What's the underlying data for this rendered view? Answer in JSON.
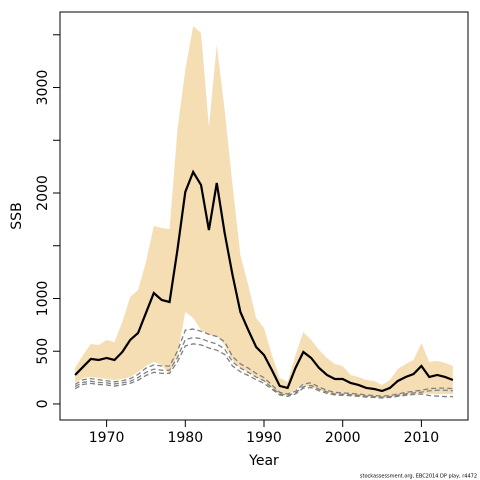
{
  "chart_data": {
    "type": "line",
    "xlabel": "Year",
    "ylabel": "SSB",
    "footer": "stockassessment.org, EBC2014 DP play, r4472",
    "x": [
      1966,
      1967,
      1968,
      1969,
      1970,
      1971,
      1972,
      1973,
      1974,
      1975,
      1976,
      1977,
      1978,
      1979,
      1980,
      1981,
      1982,
      1983,
      1984,
      1985,
      1986,
      1987,
      1988,
      1989,
      1990,
      1991,
      1992,
      1993,
      1994,
      1995,
      1996,
      1997,
      1998,
      1999,
      2000,
      2001,
      2002,
      2003,
      2004,
      2005,
      2006,
      2007,
      2008,
      2009,
      2010,
      2011,
      2012,
      2013,
      2014
    ],
    "xlim": [
      1964.08,
      2015.92
    ],
    "xticks": [
      1970,
      1980,
      1990,
      2000,
      2010
    ],
    "ylim": [
      -152,
      3716
    ],
    "yticks": [
      0,
      500,
      1000,
      2000,
      3000
    ],
    "minor_yticks": [
      1500,
      2500,
      3500
    ],
    "band": {
      "color": "#f5deb3",
      "upper": [
        341,
        464,
        569,
        559,
        607,
        588,
        777,
        1014,
        1081,
        1346,
        1687,
        1668,
        1659,
        2597,
        3166,
        3583,
        3517,
        2626,
        3403,
        2787,
        2076,
        1412,
        1128,
        815,
        720,
        464,
        246,
        209,
        464,
        682,
        607,
        512,
        436,
        379,
        360,
        275,
        256,
        227,
        218,
        180,
        227,
        332,
        379,
        417,
        578,
        398,
        408,
        389,
        360
      ],
      "lower": [
        199,
        246,
        256,
        246,
        237,
        227,
        237,
        256,
        303,
        360,
        398,
        370,
        284,
        464,
        872,
        815,
        701,
        654,
        645,
        559,
        417,
        341,
        303,
        256,
        218,
        152,
        85,
        85,
        133,
        180,
        161,
        133,
        104,
        95,
        95,
        85,
        76,
        66,
        66,
        57,
        66,
        76,
        85,
        95,
        104,
        95,
        95,
        95,
        95
      ]
    },
    "series": [
      {
        "color": "#000000",
        "dash": false,
        "values": [
          275,
          351,
          427,
          417,
          436,
          417,
          493,
          607,
          673,
          863,
          1052,
          986,
          967,
          1460,
          2010,
          2199,
          2076,
          1649,
          2095,
          1621,
          1223,
          872,
          701,
          540,
          464,
          322,
          171,
          152,
          341,
          493,
          436,
          341,
          275,
          237,
          237,
          199,
          180,
          152,
          142,
          123,
          152,
          218,
          256,
          284,
          360,
          256,
          275,
          256,
          227
        ]
      },
      {
        "color": "#808080",
        "dash": true,
        "values": [
          185,
          230,
          240,
          230,
          220,
          210,
          220,
          240,
          280,
          340,
          370,
          360,
          360,
          500,
          700,
          710,
          690,
          660,
          640,
          590,
          450,
          380,
          340,
          290,
          250,
          180,
          110,
          95,
          120,
          190,
          200,
          160,
          130,
          110,
          105,
          100,
          95,
          85,
          80,
          75,
          80,
          95,
          110,
          120,
          130,
          145,
          150,
          150,
          145
        ]
      },
      {
        "color": "#808080",
        "dash": true,
        "values": [
          165,
          205,
          215,
          205,
          200,
          190,
          200,
          215,
          250,
          300,
          330,
          320,
          320,
          440,
          610,
          630,
          620,
          590,
          570,
          520,
          400,
          340,
          300,
          255,
          220,
          155,
          95,
          82,
          105,
          165,
          175,
          140,
          115,
          95,
          92,
          88,
          82,
          74,
          70,
          65,
          70,
          82,
          95,
          105,
          112,
          125,
          130,
          130,
          125
        ]
      },
      {
        "color": "#808080",
        "dash": true,
        "values": [
          145,
          185,
          195,
          185,
          180,
          170,
          180,
          195,
          225,
          270,
          300,
          290,
          290,
          400,
          550,
          570,
          560,
          530,
          510,
          470,
          360,
          305,
          270,
          230,
          195,
          140,
          85,
          72,
          95,
          150,
          155,
          125,
          100,
          85,
          82,
          78,
          72,
          65,
          62,
          57,
          62,
          72,
          82,
          90,
          95,
          80,
          75,
          70,
          70
        ]
      }
    ]
  }
}
